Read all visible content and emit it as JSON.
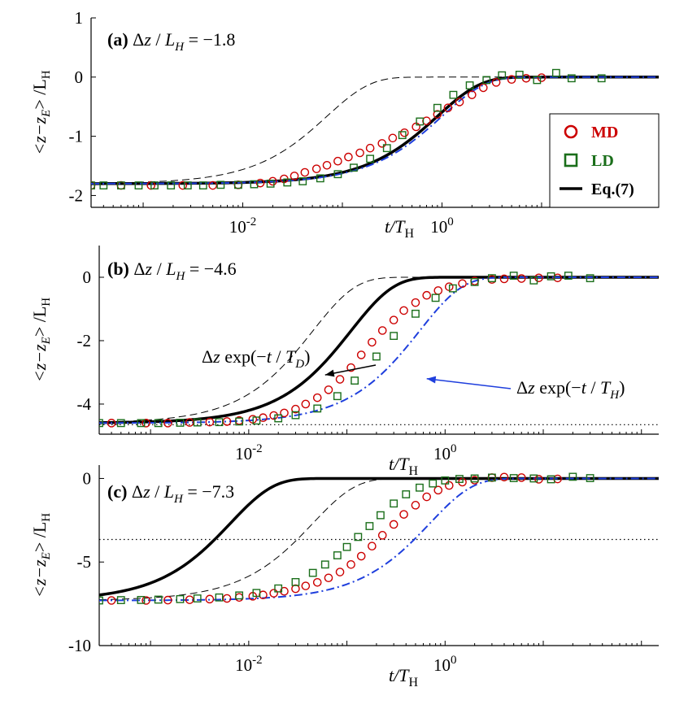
{
  "chart_data": [
    {
      "type": "line",
      "panel": "(a)",
      "annotation": "Δz / L_H = −1.8",
      "dz": -1.8,
      "xscale": "log",
      "xlim": [
        0.0003,
        150
      ],
      "ylim": [
        -2.2,
        1
      ],
      "yticks": [
        1,
        0,
        -1,
        -2
      ],
      "ytick_labels": [
        "1",
        "0",
        "-1",
        "-2"
      ],
      "xticks": [
        0.01,
        1
      ],
      "xtick_labels": [
        "10",
        "10"
      ],
      "xtick_exponents": [
        "-2",
        "0"
      ],
      "xlabel": "t/T",
      "xlabel_sub": "H",
      "ylabel": "<z−z",
      "ylabel_sub_E": "E",
      "ylabel_tail": "> /L",
      "ylabel_sub_H": "H",
      "guideline": null,
      "series": [
        {
          "name": "MD",
          "marker": "circle",
          "color": "#cc0000",
          "x": [
            0.0003,
            0.0006,
            0.0012,
            0.0025,
            0.005,
            0.009,
            0.015,
            0.02,
            0.026,
            0.033,
            0.042,
            0.055,
            0.07,
            0.09,
            0.115,
            0.15,
            0.19,
            0.25,
            0.32,
            0.42,
            0.55,
            0.7,
            0.9,
            1.15,
            1.5,
            2,
            2.6,
            3.5,
            5,
            7,
            10
          ],
          "y": [
            -1.83,
            -1.83,
            -1.83,
            -1.83,
            -1.83,
            -1.82,
            -1.79,
            -1.76,
            -1.72,
            -1.67,
            -1.61,
            -1.55,
            -1.49,
            -1.42,
            -1.35,
            -1.28,
            -1.2,
            -1.12,
            -1.03,
            -0.94,
            -0.84,
            -0.74,
            -0.63,
            -0.52,
            -0.42,
            -0.3,
            -0.18,
            -0.09,
            -0.04,
            -0.02,
            -0.01
          ]
        },
        {
          "name": "LD",
          "marker": "square",
          "color": "#1a6e1a",
          "x": [
            0.0003,
            0.0004,
            0.0006,
            0.0009,
            0.0013,
            0.0019,
            0.0028,
            0.004,
            0.006,
            0.009,
            0.013,
            0.019,
            0.028,
            0.04,
            0.06,
            0.09,
            0.13,
            0.19,
            0.28,
            0.4,
            0.6,
            0.9,
            1.3,
            1.9,
            2.8,
            4,
            6,
            9,
            14,
            20,
            40
          ],
          "y": [
            -1.83,
            -1.83,
            -1.83,
            -1.83,
            -1.83,
            -1.83,
            -1.83,
            -1.83,
            -1.82,
            -1.82,
            -1.81,
            -1.8,
            -1.78,
            -1.76,
            -1.71,
            -1.64,
            -1.53,
            -1.38,
            -1.2,
            -0.98,
            -0.75,
            -0.52,
            -0.3,
            -0.14,
            -0.05,
            0.03,
            0.04,
            -0.05,
            0.07,
            -0.02,
            -0.02
          ]
        },
        {
          "name": "Eq.(7)",
          "style": "solid",
          "color": "#000000",
          "width": 3.5,
          "tau": 0.9
        },
        {
          "name": "Δz exp(−t/T_D)",
          "style": "dashed",
          "color": "#000000",
          "width": 1,
          "tau": 0.07
        },
        {
          "name": "Δz exp(−t/T_H)",
          "style": "dashdot",
          "color": "#1f3fdd",
          "width": 2,
          "tau": 1
        }
      ],
      "legend": {
        "position": "right",
        "entries": [
          {
            "label": "MD",
            "marker": "circle",
            "color": "#cc0000"
          },
          {
            "label": "LD",
            "marker": "square",
            "color": "#1a6e1a"
          },
          {
            "label": "Eq.(7)",
            "marker": "line",
            "color": "#000000"
          }
        ]
      }
    },
    {
      "type": "line",
      "panel": "(b)",
      "annotation": "Δz / L_H = −4.6",
      "dz": -4.6,
      "xscale": "log",
      "xlim": [
        0.0003,
        150
      ],
      "ylim": [
        -4.95,
        1
      ],
      "yticks": [
        0,
        -2,
        -4
      ],
      "ytick_labels": [
        "0",
        "-2",
        "-4"
      ],
      "xticks": [
        0.01,
        1
      ],
      "xtick_labels": [
        "10",
        "10"
      ],
      "xtick_exponents": [
        "-2",
        "0"
      ],
      "xlabel": "t/T",
      "xlabel_sub": "H",
      "ylabel": "<z−z",
      "ylabel_sub_E": "E",
      "ylabel_tail": "> /L",
      "ylabel_sub_H": "H",
      "guideline": -4.65,
      "annotations": [
        {
          "text": "Δz exp(−t / T_D)",
          "color": "#000000",
          "points_to": [
            0.06,
            -3.08
          ]
        },
        {
          "text": "Δz exp(−t / T_H)",
          "color": "#1f3fdd",
          "points_to": [
            0.65,
            -3.2
          ]
        }
      ],
      "series": [
        {
          "name": "MD",
          "marker": "circle",
          "color": "#cc0000",
          "x": [
            0.0004,
            0.0009,
            0.0015,
            0.0025,
            0.004,
            0.006,
            0.008,
            0.011,
            0.014,
            0.018,
            0.023,
            0.03,
            0.038,
            0.05,
            0.065,
            0.085,
            0.11,
            0.14,
            0.18,
            0.23,
            0.3,
            0.38,
            0.5,
            0.65,
            0.85,
            1.1,
            1.5,
            2,
            3,
            4,
            6,
            9,
            14
          ],
          "y": [
            -4.6,
            -4.6,
            -4.6,
            -4.58,
            -4.57,
            -4.55,
            -4.52,
            -4.48,
            -4.43,
            -4.36,
            -4.28,
            -4.16,
            -4.0,
            -3.8,
            -3.55,
            -3.22,
            -2.85,
            -2.45,
            -2.05,
            -1.68,
            -1.35,
            -1.05,
            -0.8,
            -0.57,
            -0.42,
            -0.3,
            -0.2,
            -0.12,
            -0.07,
            -0.05,
            -0.04,
            -0.02,
            -0.02
          ]
        },
        {
          "name": "LD",
          "marker": "square",
          "color": "#1a6e1a",
          "x": [
            0.0003,
            0.0005,
            0.0008,
            0.0012,
            0.002,
            0.003,
            0.005,
            0.008,
            0.012,
            0.02,
            0.03,
            0.05,
            0.08,
            0.12,
            0.2,
            0.3,
            0.5,
            0.8,
            1.2,
            2,
            3,
            5,
            8,
            12,
            18,
            30
          ],
          "y": [
            -4.6,
            -4.6,
            -4.6,
            -4.6,
            -4.59,
            -4.58,
            -4.57,
            -4.55,
            -4.52,
            -4.45,
            -4.35,
            -4.14,
            -3.75,
            -3.26,
            -2.5,
            -1.85,
            -1.15,
            -0.65,
            -0.35,
            -0.15,
            -0.03,
            0.05,
            -0.1,
            0.03,
            0.05,
            -0.03
          ]
        },
        {
          "name": "Eq.(7)",
          "style": "solid",
          "color": "#000000",
          "width": 3.5,
          "tau": 0.11
        },
        {
          "name": "Δz exp(−t/T_D)",
          "style": "dashed",
          "color": "#000000",
          "width": 1,
          "tau": 0.045
        },
        {
          "name": "Δz exp(−t/T_H)",
          "style": "dashdot",
          "color": "#1f3fdd",
          "width": 2,
          "tau": 0.55
        }
      ]
    },
    {
      "type": "line",
      "panel": "(c)",
      "annotation": "Δz / L_H = −7.3",
      "dz": -7.3,
      "xscale": "log",
      "xlim": [
        0.0003,
        150
      ],
      "ylim": [
        -10,
        0.8
      ],
      "yticks": [
        0,
        -5,
        -10
      ],
      "ytick_labels": [
        "0",
        "-5",
        "-10"
      ],
      "xticks": [
        0.01,
        1
      ],
      "xtick_labels": [
        "10",
        "10"
      ],
      "xtick_exponents": [
        "-2",
        "0"
      ],
      "xlabel": "t/T",
      "xlabel_sub": "H",
      "ylabel": "<z−z",
      "ylabel_sub_E": "E",
      "ylabel_tail": "> /L",
      "ylabel_sub_H": "H",
      "guideline": -3.65,
      "series": [
        {
          "name": "MD",
          "marker": "circle",
          "color": "#cc0000",
          "x": [
            0.0004,
            0.0009,
            0.0015,
            0.0025,
            0.004,
            0.006,
            0.008,
            0.011,
            0.014,
            0.018,
            0.023,
            0.03,
            0.038,
            0.05,
            0.065,
            0.085,
            0.11,
            0.14,
            0.18,
            0.23,
            0.3,
            0.38,
            0.5,
            0.65,
            0.85,
            1.1,
            1.5,
            2,
            3,
            4,
            6,
            9,
            14
          ],
          "y": [
            -7.3,
            -7.3,
            -7.28,
            -7.26,
            -7.22,
            -7.18,
            -7.12,
            -7.05,
            -6.97,
            -6.87,
            -6.75,
            -6.6,
            -6.43,
            -6.22,
            -5.95,
            -5.6,
            -5.15,
            -4.65,
            -4.05,
            -3.4,
            -2.75,
            -2.15,
            -1.6,
            -1.1,
            -0.7,
            -0.42,
            -0.22,
            -0.1,
            0.05,
            0.08,
            0.05,
            -0.05,
            -0.03
          ]
        },
        {
          "name": "LD",
          "marker": "square",
          "color": "#1a6e1a",
          "x": [
            0.0003,
            0.0005,
            0.0008,
            0.0012,
            0.002,
            0.003,
            0.005,
            0.008,
            0.012,
            0.02,
            0.03,
            0.045,
            0.06,
            0.08,
            0.1,
            0.13,
            0.17,
            0.22,
            0.3,
            0.4,
            0.55,
            0.75,
            1,
            1.4,
            2,
            3,
            5,
            8,
            12,
            20,
            30
          ],
          "y": [
            -7.3,
            -7.28,
            -7.27,
            -7.25,
            -7.22,
            -7.18,
            -7.12,
            -7.0,
            -6.85,
            -6.58,
            -6.2,
            -5.65,
            -5.15,
            -4.6,
            -4.1,
            -3.5,
            -2.85,
            -2.2,
            -1.5,
            -0.95,
            -0.55,
            -0.3,
            -0.12,
            -0.03,
            0.0,
            0.05,
            0.02,
            0.0,
            -0.05,
            0.1,
            0.02
          ]
        },
        {
          "name": "Eq.(7)",
          "style": "solid",
          "color": "#000000",
          "width": 3.5,
          "tau": 0.0065
        },
        {
          "name": "Δz exp(−t/T_D)",
          "style": "dashed",
          "color": "#000000",
          "width": 1,
          "tau": 0.045
        },
        {
          "name": "Δz exp(−t/T_H)",
          "style": "dashdot",
          "color": "#1f3fdd",
          "width": 2,
          "tau": 0.7
        }
      ]
    }
  ]
}
